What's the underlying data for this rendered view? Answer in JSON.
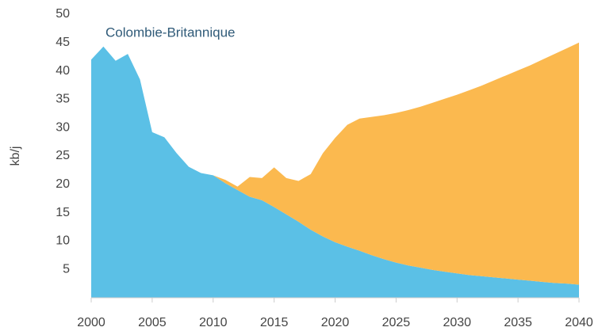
{
  "chart_data": {
    "type": "stacked_area",
    "annotation": "Colombie-Britannique",
    "y_label": "kb/j",
    "x": [
      2000,
      2001,
      2002,
      2003,
      2004,
      2005,
      2006,
      2007,
      2008,
      2009,
      2010,
      2011,
      2012,
      2013,
      2014,
      2015,
      2016,
      2017,
      2018,
      2019,
      2020,
      2021,
      2022,
      2023,
      2024,
      2025,
      2026,
      2027,
      2028,
      2029,
      2030,
      2031,
      2032,
      2033,
      2034,
      2035,
      2036,
      2037,
      2038,
      2039,
      2040
    ],
    "series": [
      {
        "color": "#5bc0e6",
        "values": [
          42,
          44.3,
          41.8,
          43,
          38.5,
          29.2,
          28.3,
          25.5,
          23.1,
          22,
          21.6,
          20.2,
          19.0,
          17.8,
          17.2,
          16.0,
          14.7,
          13.4,
          12.0,
          10.8,
          9.8,
          9.0,
          8.3,
          7.5,
          6.8,
          6.2,
          5.7,
          5.3,
          4.9,
          4.6,
          4.3,
          4.0,
          3.8,
          3.6,
          3.4,
          3.2,
          3.0,
          2.8,
          2.6,
          2.5,
          2.3
        ]
      },
      {
        "color": "#fbb94f",
        "values": [
          0,
          0,
          0,
          0,
          0,
          0,
          0,
          0,
          0,
          0,
          0,
          0.6,
          0.6,
          3.5,
          3.9,
          7.0,
          6.4,
          7.2,
          9.8,
          14.7,
          18.4,
          21.5,
          23.3,
          24.4,
          25.4,
          26.4,
          27.4,
          28.4,
          29.5,
          30.5,
          31.5,
          32.6,
          33.6,
          34.7,
          35.8,
          36.9,
          38.0,
          39.2,
          40.4,
          41.5,
          42.7
        ]
      }
    ],
    "xlim": [
      2000,
      2040
    ],
    "xticks": [
      2000,
      2005,
      2010,
      2015,
      2020,
      2025,
      2030,
      2035,
      2040
    ],
    "ylim": [
      0,
      50
    ],
    "yticks": [
      5,
      10,
      15,
      20,
      25,
      30,
      35,
      40,
      45,
      50
    ]
  }
}
